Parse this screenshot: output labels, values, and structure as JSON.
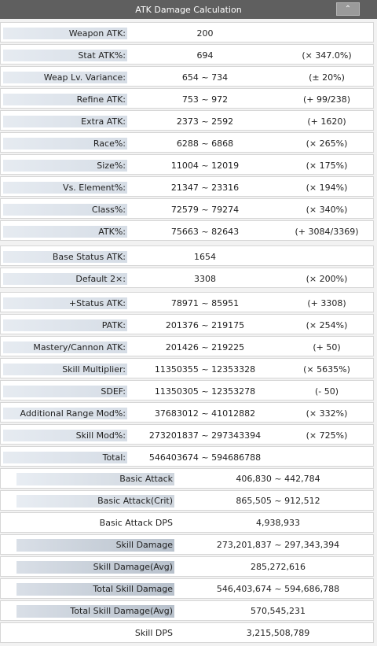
{
  "window": {
    "title": "ATK Damage Calculation",
    "collapse_icon": "chevron-up-icon"
  },
  "rows": [
    {
      "label": "Weapon ATK:",
      "value": "200",
      "note": ""
    },
    {
      "label": "Stat ATK%:",
      "value": "694",
      "note": "(× 347.0%)"
    },
    {
      "label": "Weap Lv. Variance:",
      "value": "654 ~ 734",
      "note": "(± 20%)"
    },
    {
      "label": "Refine ATK:",
      "value": "753 ~ 972",
      "note": "(+ 99/238)"
    },
    {
      "label": "Extra ATK:",
      "value": "2373 ~ 2592",
      "note": "(+ 1620)"
    },
    {
      "label": "Race%:",
      "value": "6288 ~ 6868",
      "note": "(× 265%)"
    },
    {
      "label": "Size%:",
      "value": "11004 ~ 12019",
      "note": "(× 175%)"
    },
    {
      "label": "Vs. Element%:",
      "value": "21347 ~ 23316",
      "note": "(× 194%)"
    },
    {
      "label": "Class%:",
      "value": "72579 ~ 79274",
      "note": "(× 340%)"
    },
    {
      "label": "ATK%:",
      "value": "75663 ~ 82643",
      "note": "(+ 3084/3369)"
    },
    {
      "label": "Base Status ATK:",
      "value": "1654",
      "note": ""
    },
    {
      "label": "Default 2×:",
      "value": "3308",
      "note": "(× 200%)"
    },
    {
      "label": "+Status ATK:",
      "value": "78971 ~ 85951",
      "note": "(+ 3308)"
    },
    {
      "label": "PATK:",
      "value": "201376 ~ 219175",
      "note": "(× 254%)"
    },
    {
      "label": "Mastery/Cannon ATK:",
      "value": "201426 ~ 219225",
      "note": "(+ 50)"
    },
    {
      "label": "Skill Multiplier:",
      "value": "11350355 ~ 12353328",
      "note": "(× 5635%)"
    },
    {
      "label": "SDEF:",
      "value": "11350305 ~ 12353278",
      "note": "(- 50)"
    },
    {
      "label": "Additional Range Mod%:",
      "value": "37683012 ~ 41012882",
      "note": "(× 332%)"
    },
    {
      "label": "Skill Mod%:",
      "value": "273201837 ~ 297343394",
      "note": "(× 725%)"
    },
    {
      "label": "Total:",
      "value": "546403674 ~ 594686788",
      "note": ""
    }
  ],
  "summary": [
    {
      "label": "Basic Attack",
      "value": "406,830 ~ 442,784"
    },
    {
      "label": "Basic Attack(Crit)",
      "value": "865,505 ~ 912,512"
    },
    {
      "label": "Basic Attack DPS",
      "value": "4,938,933"
    },
    {
      "label": "Skill Damage",
      "value": "273,201,837 ~ 297,343,394"
    },
    {
      "label": "Skill Damage(Avg)",
      "value": "285,272,616"
    },
    {
      "label": "Total Skill Damage",
      "value": "546,403,674 ~ 594,686,788"
    },
    {
      "label": "Total Skill Damage(Avg)",
      "value": "570,545,231"
    },
    {
      "label": "Skill DPS",
      "value": "3,215,508,789"
    }
  ]
}
